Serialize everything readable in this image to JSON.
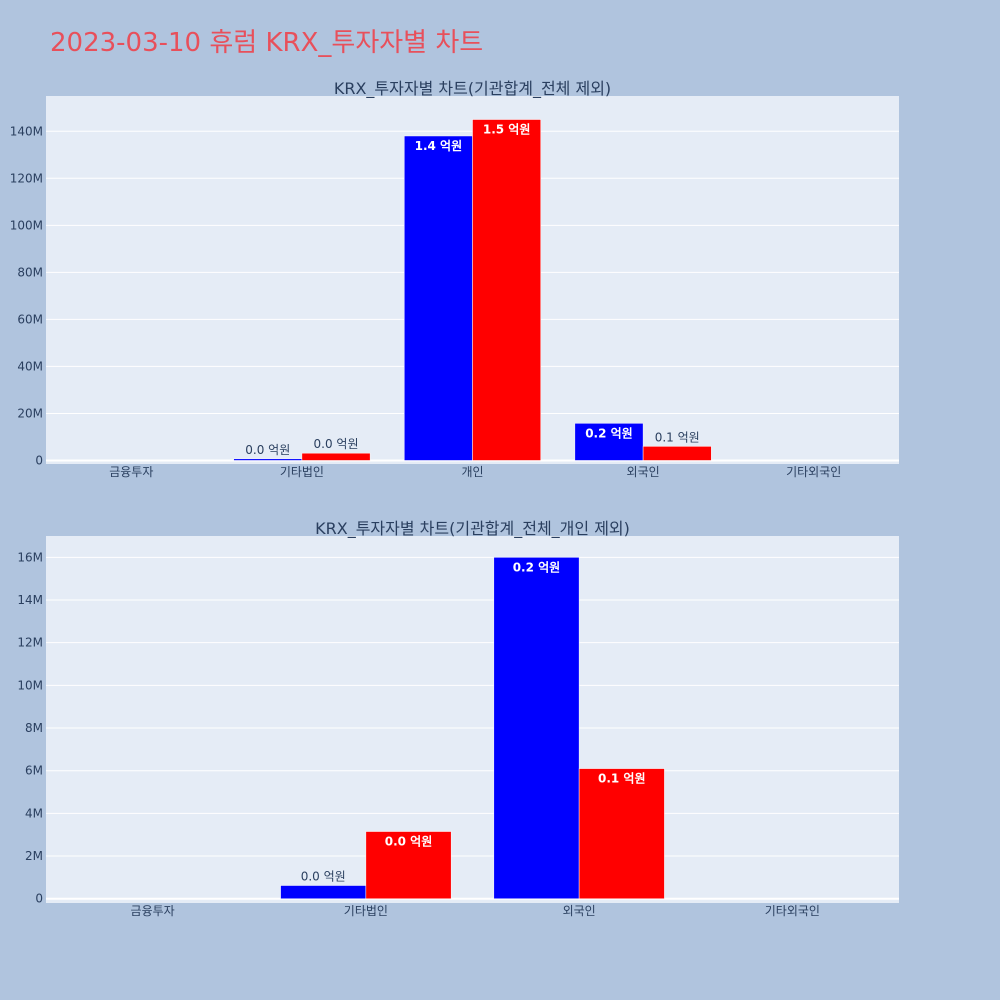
{
  "page": {
    "title": "2023-03-10 휴럼 KRX_투자자별 차트",
    "title_color": "#e8505b",
    "background": "#b0c4de",
    "plot_background": "#e5ecf6"
  },
  "chart_data": [
    {
      "type": "bar",
      "title": "KRX_투자자별 차트(기관합계_전체 제외)",
      "categories": [
        "금융투자",
        "기타법인",
        "개인",
        "외국인",
        "기타외국인"
      ],
      "series": [
        {
          "color": "#0000ff",
          "values": [
            0,
            700000,
            138000000,
            15800000,
            0
          ],
          "labels": [
            "",
            "0.0 억원",
            "1.4 억원",
            "0.2 억원",
            ""
          ]
        },
        {
          "color": "#ff0000",
          "values": [
            0,
            3100000,
            145000000,
            6000000,
            0
          ],
          "labels": [
            "",
            "0.0 억원",
            "1.5 억원",
            "0.1 억원",
            ""
          ]
        }
      ],
      "ylim": [
        -1500000,
        155000000
      ],
      "yticks": [
        0,
        20000000,
        40000000,
        60000000,
        80000000,
        100000000,
        120000000,
        140000000
      ],
      "ytick_labels": [
        "0",
        "20M",
        "40M",
        "60M",
        "80M",
        "100M",
        "120M",
        "140M"
      ],
      "grid": true,
      "legend": "none",
      "xlabel": "",
      "ylabel": ""
    },
    {
      "type": "bar",
      "title": "KRX_투자자별 차트(기관합계_전체_개인 제외)",
      "categories": [
        "금융투자",
        "기타법인",
        "외국인",
        "기타외국인"
      ],
      "series": [
        {
          "color": "#0000ff",
          "values": [
            0,
            620000,
            16000000,
            0
          ],
          "labels": [
            "",
            "0.0 억원",
            "0.2 억원",
            ""
          ]
        },
        {
          "color": "#ff0000",
          "values": [
            0,
            3150000,
            6100000,
            0
          ],
          "labels": [
            "",
            "0.0 억원",
            "0.1 억원",
            ""
          ]
        }
      ],
      "ylim": [
        -200000,
        17000000
      ],
      "yticks": [
        0,
        2000000,
        4000000,
        6000000,
        8000000,
        10000000,
        12000000,
        14000000,
        16000000
      ],
      "ytick_labels": [
        "0",
        "2M",
        "4M",
        "6M",
        "8M",
        "10M",
        "12M",
        "14M",
        "16M"
      ],
      "grid": true,
      "legend": "none",
      "xlabel": "",
      "ylabel": ""
    }
  ]
}
